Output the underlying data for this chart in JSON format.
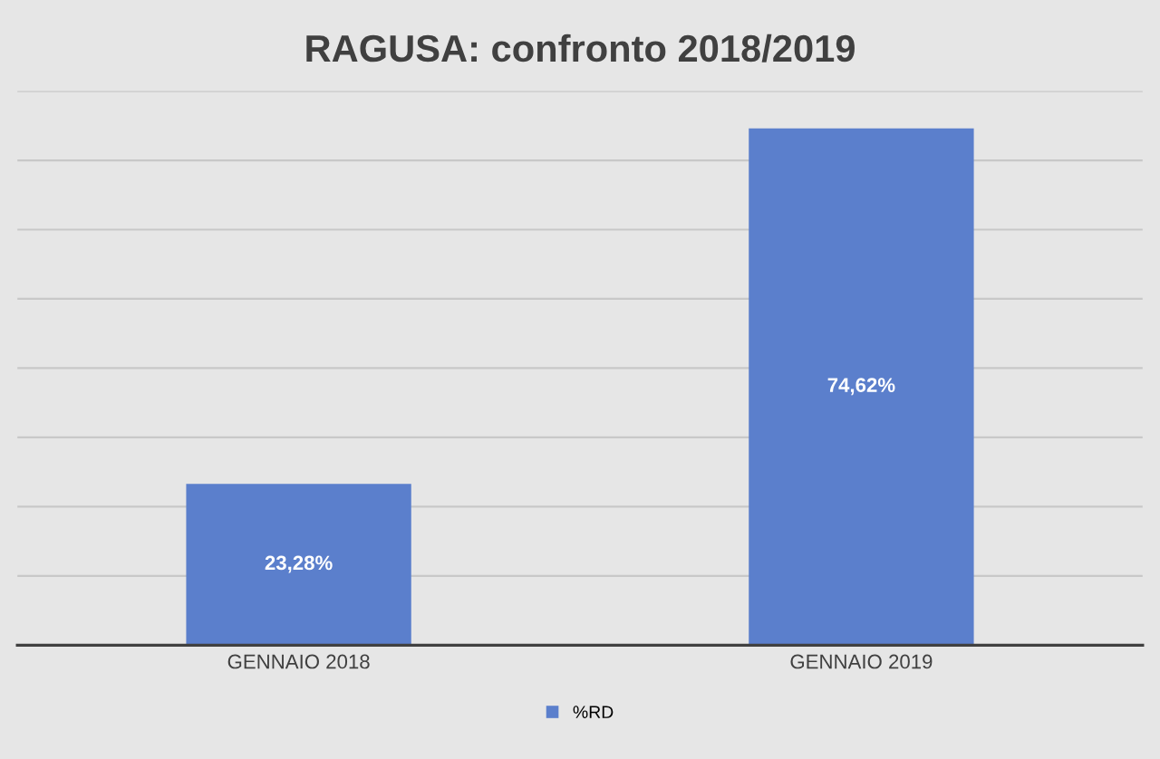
{
  "chart_data": {
    "type": "bar",
    "title": "RAGUSA: confronto 2018/2019",
    "categories": [
      "GENNAIO 2018",
      "GENNAIO 2019"
    ],
    "series": [
      {
        "name": "%RD",
        "color": "#5b7fcc",
        "values": [
          23.28,
          74.62
        ],
        "value_labels": [
          "23,28%",
          "74,62%"
        ]
      }
    ],
    "ylim": [
      0,
      80
    ],
    "yticks": [
      {
        "value": 0,
        "label": null
      },
      {
        "value": 10,
        "label": null
      },
      {
        "value": 20,
        "label": null
      },
      {
        "value": 30,
        "label": null
      },
      {
        "value": 40,
        "label": null
      },
      {
        "value": 50,
        "label": null
      },
      {
        "value": 60,
        "label": null
      },
      {
        "value": 70,
        "label": null
      },
      {
        "value": 80,
        "label": null
      }
    ],
    "grid": "y",
    "legend": "bottom",
    "tick_labels": "x"
  }
}
